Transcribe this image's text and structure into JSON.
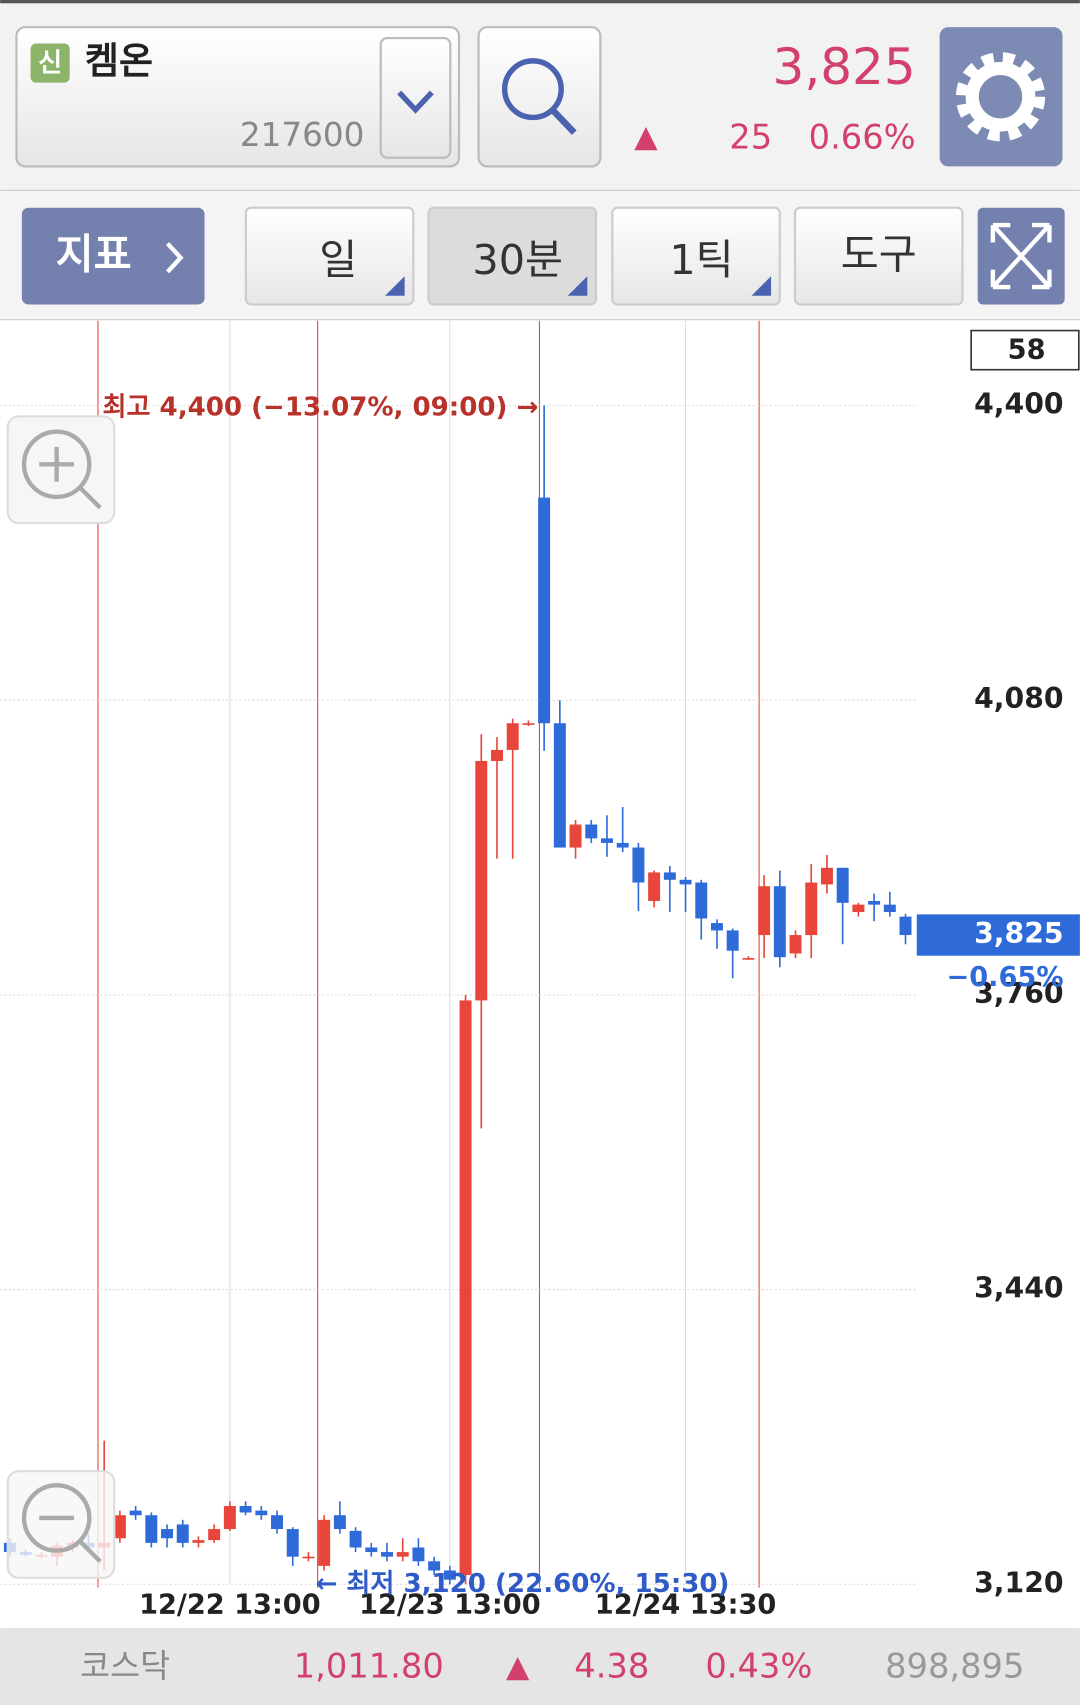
{
  "header": {
    "badge": "신",
    "name": "켐온",
    "code": "217600",
    "price": "3,825",
    "arrow": "▲",
    "change": "25",
    "change_pct": "0.66%"
  },
  "toolbar": {
    "indicator": "지표",
    "period": "일",
    "interval": "30분",
    "tick": "1틱",
    "tools": "도구"
  },
  "chart_data": {
    "type": "candlestick",
    "categories": [
      null,
      null,
      null,
      null,
      null,
      null,
      null,
      null,
      null,
      null,
      null,
      null,
      null,
      null,
      "12/22 13:00",
      null,
      null,
      null,
      null,
      null,
      null,
      null,
      null,
      null,
      null,
      null,
      null,
      null,
      "12/23 13:00",
      null,
      null,
      null,
      null,
      null,
      null,
      null,
      null,
      null,
      null,
      null,
      null,
      null,
      null,
      "12/24 13:30",
      null,
      null,
      null,
      null,
      null,
      null,
      null,
      null,
      null,
      null,
      null,
      null,
      null,
      null
    ],
    "open": [
      3165,
      3155,
      3152,
      3150,
      3160,
      3165,
      3160,
      3170,
      3200,
      3195,
      3180,
      3185,
      3165,
      3168,
      3180,
      3205,
      3200,
      3195,
      3180,
      3150,
      3140,
      3195,
      3178,
      3160,
      3155,
      3150,
      3160,
      3145,
      3135,
      3130,
      3754,
      4014,
      4026,
      4055,
      4300,
      4055,
      3920,
      3945,
      3930,
      3925,
      3920,
      3862,
      3893,
      3885,
      3882,
      3838,
      3830,
      3800,
      3825,
      3878,
      3805,
      3825,
      3880,
      3898,
      3850,
      3862,
      3858,
      3845
    ],
    "high": [
      3170,
      3158,
      3155,
      3165,
      3168,
      3175,
      3276,
      3200,
      3205,
      3198,
      3185,
      3190,
      3172,
      3185,
      3210,
      3210,
      3205,
      3200,
      3182,
      3155,
      3195,
      3210,
      3182,
      3165,
      3165,
      3170,
      3170,
      3150,
      3140,
      3760,
      4043,
      4040,
      4060,
      4058,
      4400,
      4080,
      3950,
      3950,
      3955,
      3964,
      3925,
      3895,
      3900,
      3888,
      3885,
      3842,
      3832,
      3802,
      3890,
      3895,
      3830,
      3902,
      3912,
      3898,
      3860,
      3870,
      3872,
      3848
    ],
    "low": [
      3150,
      3150,
      3148,
      3140,
      3155,
      3155,
      3135,
      3165,
      3190,
      3160,
      3160,
      3160,
      3160,
      3165,
      3178,
      3195,
      3190,
      3175,
      3140,
      3145,
      3135,
      3175,
      3155,
      3150,
      3145,
      3145,
      3140,
      3130,
      3120,
      3120,
      3615,
      3908,
      3908,
      4052,
      4025,
      3920,
      3908,
      3925,
      3910,
      3915,
      3851,
      3855,
      3850,
      3850,
      3820,
      3810,
      3778,
      3798,
      3800,
      3790,
      3800,
      3800,
      3870,
      3815,
      3845,
      3840,
      3845,
      3815
    ],
    "close": [
      3155,
      3152,
      3152,
      3162,
      3165,
      3160,
      3165,
      3195,
      3195,
      3165,
      3170,
      3165,
      3168,
      3180,
      3205,
      3198,
      3195,
      3180,
      3150,
      3150,
      3190,
      3180,
      3160,
      3155,
      3150,
      3155,
      3145,
      3135,
      3125,
      3754,
      4014,
      4026,
      4055,
      4055,
      4055,
      3920,
      3945,
      3930,
      3925,
      3920,
      3882,
      3893,
      3885,
      3880,
      3843,
      3830,
      3808,
      3800,
      3878,
      3801,
      3825,
      3882,
      3898,
      3860,
      3858,
      3858,
      3850,
      3825
    ],
    "up_color": "#e8463a",
    "down_color": "#2e6bd8",
    "ylim": [
      3120,
      4492
    ],
    "yticks": [
      {
        "value": 3120,
        "label": "3,120"
      },
      {
        "value": 3440,
        "label": "3,440"
      },
      {
        "value": 3760,
        "label": "3,760"
      },
      {
        "value": 4080,
        "label": "4,080"
      },
      {
        "value": 4400,
        "label": "4,400"
      }
    ],
    "grid": true,
    "visible_count": 58,
    "high_annotation": "최고 4,400 (−13.07%, 09:00) →",
    "low_annotation": "← 최저 3,120 (22.60%, 15:30)",
    "last_price": {
      "value": 3825,
      "label": "3,825"
    },
    "last_change": "−0.65%"
  },
  "footer": {
    "index": "코스닥",
    "value": "1,011.80",
    "arrow": "▲",
    "change": "4.38",
    "change_pct": "0.43%",
    "volume": "898,895"
  }
}
